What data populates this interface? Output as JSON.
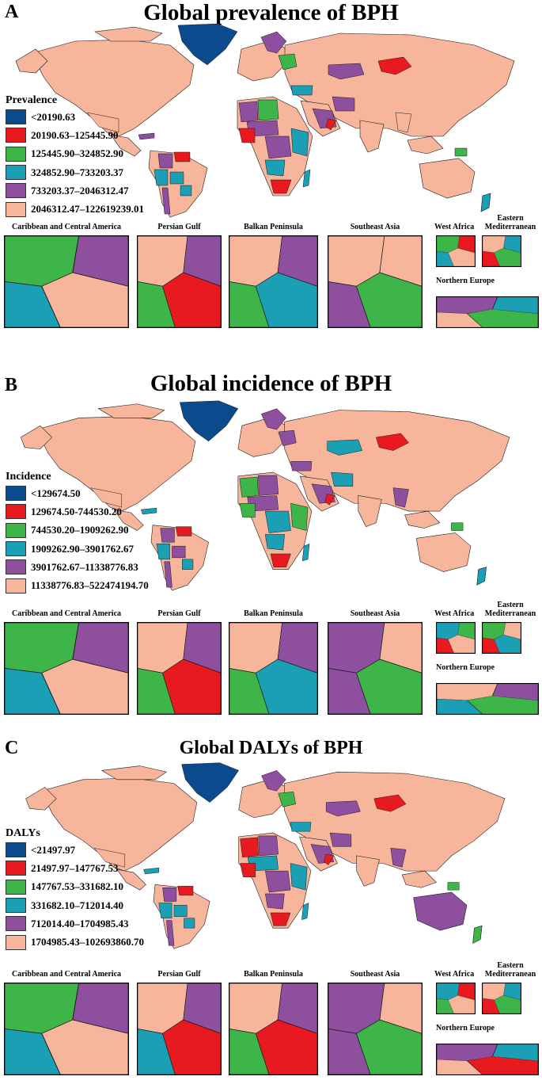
{
  "colors": {
    "navy": "#0b4a8c",
    "red": "#e8191f",
    "green": "#3eb549",
    "teal": "#1a9fb5",
    "purple": "#8e4f9e",
    "peach": "#f7b59b",
    "ocean": "#ffffff",
    "border": "#1a1a1a"
  },
  "inset_titles": {
    "caribbean": "Caribbean and Central America",
    "persian": "Persian Gulf",
    "balkan": "Balkan Peninsula",
    "seasia": "Southeast Asia",
    "west_africa": "West Africa",
    "eastern_med": "Eastern\nMediterranean",
    "northern_europe": "Northern Europe"
  },
  "panels": [
    {
      "letter": "A",
      "title": "Global prevalence of BPH",
      "legend_title": "Prevalence",
      "legend": [
        {
          "label": "<20190.63",
          "color": "#0b4a8c"
        },
        {
          "label": "20190.63–125445.90",
          "color": "#e8191f"
        },
        {
          "label": "125445.90–324852.90",
          "color": "#3eb549"
        },
        {
          "label": "324852.90–733203.37",
          "color": "#1a9fb5"
        },
        {
          "label": "733203.37–2046312.47",
          "color": "#8e4f9e"
        },
        {
          "label": "2046312.47–122619239.01",
          "color": "#f7b59b"
        }
      ]
    },
    {
      "letter": "B",
      "title": "Global incidence of BPH",
      "legend_title": "Incidence",
      "legend": [
        {
          "label": "<129674.50",
          "color": "#0b4a8c"
        },
        {
          "label": "129674.50-744530.20",
          "color": "#e8191f"
        },
        {
          "label": "744530.20–1909262.90",
          "color": "#3eb549"
        },
        {
          "label": "1909262.90–3901762.67",
          "color": "#1a9fb5"
        },
        {
          "label": "3901762.67–11338776.83",
          "color": "#8e4f9e"
        },
        {
          "label": "11338776.83–522474194.70",
          "color": "#f7b59b"
        }
      ]
    },
    {
      "letter": "C",
      "title": "Global DALYs of BPH",
      "legend_title": "DALYs",
      "legend": [
        {
          "label": "<21497.97",
          "color": "#0b4a8c"
        },
        {
          "label": "21497.97–147767.53",
          "color": "#e8191f"
        },
        {
          "label": "147767.53–331682.10",
          "color": "#3eb549"
        },
        {
          "label": "331682.10–712014.40",
          "color": "#1a9fb5"
        },
        {
          "label": "712014.40–1704985.43",
          "color": "#8e4f9e"
        },
        {
          "label": "1704985.43–102693860.70",
          "color": "#f7b59b"
        }
      ]
    }
  ]
}
